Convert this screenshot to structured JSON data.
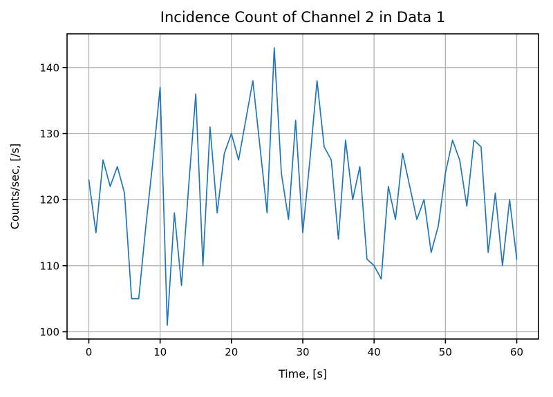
{
  "figure": {
    "title": "Incidence Count of Channel 2 in Data 1",
    "xlabel": "Time, [s]",
    "ylabel": "Counts/sec, [/s]",
    "background_color": "#ffffff",
    "line_color": "#1f77b4",
    "grid_color": "#b2b2b2",
    "spine_color": "#000000",
    "tick_color": "#000000"
  },
  "chart_data": {
    "type": "line",
    "title": "Incidence Count of Channel 2 in Data 1",
    "xlabel": "Time, [s]",
    "ylabel": "Counts/sec, [/s]",
    "legend": false,
    "grid": true,
    "xlim": [
      -3.05,
      63.05
    ],
    "ylim": [
      98.9,
      145.1
    ],
    "xticks": [
      0,
      10,
      20,
      30,
      40,
      50,
      60
    ],
    "yticks": [
      100,
      110,
      120,
      130,
      140
    ],
    "x": [
      0,
      1,
      2,
      3,
      4,
      5,
      6,
      7,
      8,
      9,
      10,
      11,
      12,
      13,
      14,
      15,
      16,
      17,
      18,
      19,
      20,
      21,
      22,
      23,
      24,
      25,
      26,
      27,
      28,
      29,
      30,
      31,
      32,
      33,
      34,
      35,
      36,
      37,
      38,
      39,
      40,
      41,
      42,
      43,
      44,
      45,
      46,
      47,
      48,
      49,
      50,
      51,
      52,
      53,
      54,
      55,
      56,
      57,
      58,
      59,
      60
    ],
    "values": [
      123,
      115,
      126,
      122,
      125,
      121,
      105,
      105,
      116,
      126,
      137,
      101,
      118,
      107,
      122,
      136,
      110,
      131,
      118,
      127,
      130,
      126,
      132,
      138,
      128,
      118,
      143,
      124,
      117,
      132,
      115,
      126,
      138,
      128,
      126,
      114,
      129,
      120,
      125,
      111,
      110,
      108,
      122,
      117,
      127,
      122,
      117,
      120,
      112,
      116,
      124,
      129,
      126,
      119,
      129,
      128,
      112,
      121,
      110,
      120,
      111
    ]
  }
}
